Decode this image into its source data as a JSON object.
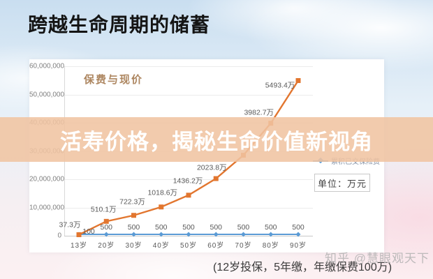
{
  "page": {
    "title": "跨越生命周期的储蓄",
    "overlay_text": "活寿价格，揭秘生命价值新视角",
    "caption": "(12岁投保，5年缴，年缴保费100万)",
    "watermark": "知乎 @慧眼观天下"
  },
  "colors": {
    "cash_value_line": "#e2762f",
    "premium_line": "#5b9bd5",
    "overlay_band": "#f0c4a2",
    "chart_title": "#ad8660"
  },
  "chart_data": {
    "type": "line",
    "title": "保费与现价",
    "unit_box": "单位：万元",
    "categories": [
      "13岁",
      "20岁",
      "30岁",
      "40岁",
      "50岁",
      "60岁",
      "70岁",
      "80岁",
      "90岁"
    ],
    "y_ticks_top_down": [
      "60,000,000",
      "50,000,000",
      "40,000,000",
      "30,000,000",
      "20,000,000",
      "10,000,000",
      "0"
    ],
    "ylim_wan": [
      0,
      6000
    ],
    "grid": true,
    "legend_position": "right",
    "series": [
      {
        "id": "cash-value",
        "color": "#e2762f",
        "marker": "square",
        "legend_visible": false,
        "values_wan": [
          37.3,
          510.1,
          722.3,
          1018.6,
          1436.2,
          2023.8,
          2850,
          3982.7,
          5493.4
        ],
        "labels": [
          "37.3万",
          "510.1万",
          "722.3万",
          "1018.6万",
          "1436.2万",
          "2023.8万",
          "",
          "3982.7万",
          "5493.4万"
        ]
      },
      {
        "id": "paid-premium",
        "name": "累积已交保险费",
        "color": "#5b9bd5",
        "marker": "diamond",
        "legend_visible": true,
        "plotted_flat_near_zero": true,
        "values_wan": [
          100,
          500,
          500,
          500,
          500,
          500,
          500,
          500,
          500
        ],
        "labels": [
          "100",
          "500",
          "500",
          "500",
          "500",
          "500",
          "500",
          "500",
          "500"
        ]
      }
    ]
  }
}
